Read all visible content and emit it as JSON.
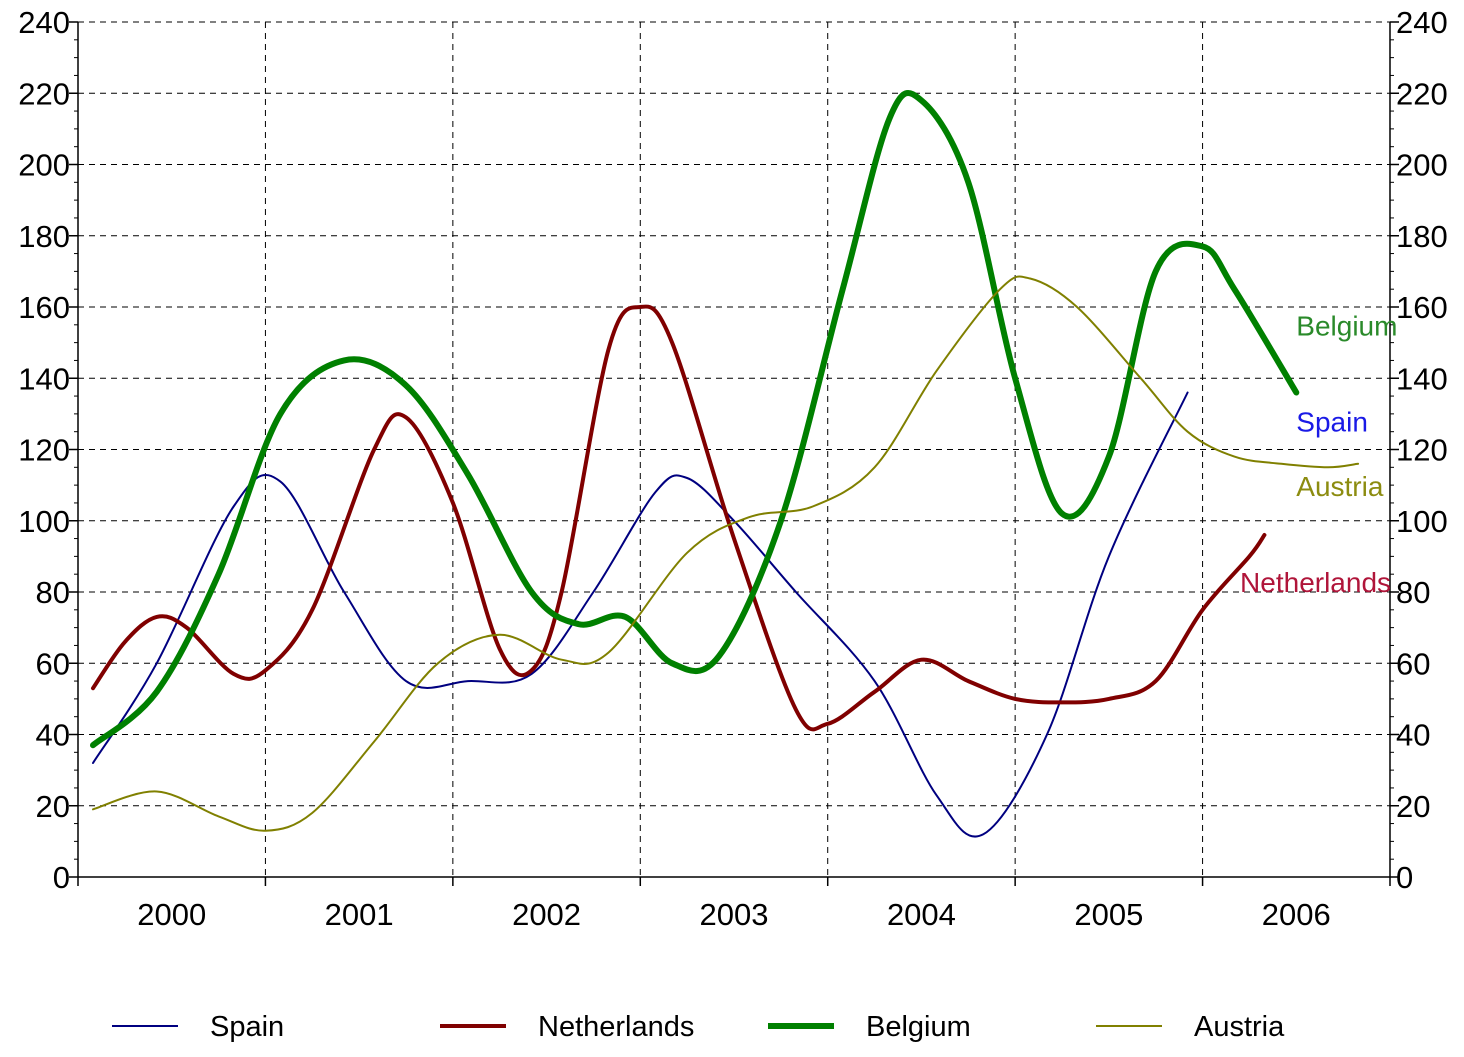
{
  "chart_data": {
    "type": "line",
    "title": "",
    "xlabel": "",
    "ylabel": "",
    "ylim": [
      0,
      240
    ],
    "y_ticks": [
      0,
      20,
      40,
      60,
      80,
      100,
      120,
      140,
      160,
      180,
      200,
      220,
      240
    ],
    "y_axes": "left-and-right",
    "xlim": [
      2000,
      2007
    ],
    "x_tick_labels": [
      "2000",
      "2001",
      "2002",
      "2003",
      "2004",
      "2005",
      "2006"
    ],
    "grid": "dashed",
    "legend_position": "bottom",
    "series": [
      {
        "name": "Spain",
        "color": "#000080",
        "line_width": "thin",
        "points": [
          [
            2000.08,
            32
          ],
          [
            2000.42,
            60
          ],
          [
            2000.83,
            104
          ],
          [
            2001.08,
            111
          ],
          [
            2001.42,
            80
          ],
          [
            2001.75,
            55
          ],
          [
            2002.08,
            55
          ],
          [
            2002.42,
            57
          ],
          [
            2002.75,
            80
          ],
          [
            2003.08,
            108
          ],
          [
            2003.25,
            112
          ],
          [
            2003.5,
            100
          ],
          [
            2003.83,
            80
          ],
          [
            2004.25,
            55
          ],
          [
            2004.58,
            23
          ],
          [
            2004.83,
            12
          ],
          [
            2005.17,
            40
          ],
          [
            2005.5,
            90
          ],
          [
            2005.92,
            136
          ]
        ]
      },
      {
        "name": "Netherlands",
        "color": "#800000",
        "line_width": "medium",
        "points": [
          [
            2000.08,
            53
          ],
          [
            2000.25,
            66
          ],
          [
            2000.42,
            73
          ],
          [
            2000.58,
            70
          ],
          [
            2000.83,
            57
          ],
          [
            2001.0,
            58
          ],
          [
            2001.25,
            75
          ],
          [
            2001.58,
            120
          ],
          [
            2001.75,
            129
          ],
          [
            2002.0,
            105
          ],
          [
            2002.25,
            64
          ],
          [
            2002.42,
            58
          ],
          [
            2002.58,
            80
          ],
          [
            2002.83,
            148
          ],
          [
            2003.0,
            160
          ],
          [
            2003.17,
            150
          ],
          [
            2003.5,
            95
          ],
          [
            2003.83,
            47
          ],
          [
            2004.0,
            43
          ],
          [
            2004.25,
            52
          ],
          [
            2004.5,
            61
          ],
          [
            2004.75,
            55
          ],
          [
            2005.0,
            50
          ],
          [
            2005.25,
            49
          ],
          [
            2005.5,
            50
          ],
          [
            2005.75,
            55
          ],
          [
            2006.0,
            75
          ],
          [
            2006.25,
            90
          ],
          [
            2006.33,
            96
          ]
        ]
      },
      {
        "name": "Belgium",
        "color": "#008000",
        "line_width": "thick",
        "points": [
          [
            2000.08,
            37
          ],
          [
            2000.42,
            52
          ],
          [
            2000.75,
            85
          ],
          [
            2001.08,
            130
          ],
          [
            2001.42,
            145
          ],
          [
            2001.75,
            138
          ],
          [
            2002.08,
            113
          ],
          [
            2002.42,
            80
          ],
          [
            2002.67,
            71
          ],
          [
            2002.92,
            73
          ],
          [
            2003.17,
            60
          ],
          [
            2003.42,
            62
          ],
          [
            2003.75,
            100
          ],
          [
            2004.08,
            165
          ],
          [
            2004.33,
            213
          ],
          [
            2004.5,
            218
          ],
          [
            2004.75,
            195
          ],
          [
            2005.0,
            140
          ],
          [
            2005.25,
            102
          ],
          [
            2005.5,
            118
          ],
          [
            2005.75,
            170
          ],
          [
            2006.0,
            177
          ],
          [
            2006.17,
            165
          ],
          [
            2006.5,
            136
          ]
        ]
      },
      {
        "name": "Austria",
        "color": "#808000",
        "line_width": "thin",
        "points": [
          [
            2000.08,
            19
          ],
          [
            2000.42,
            24
          ],
          [
            2000.75,
            17
          ],
          [
            2001.0,
            13
          ],
          [
            2001.25,
            18
          ],
          [
            2001.58,
            38
          ],
          [
            2001.92,
            60
          ],
          [
            2002.25,
            68
          ],
          [
            2002.58,
            61
          ],
          [
            2002.83,
            63
          ],
          [
            2003.25,
            91
          ],
          [
            2003.58,
            101
          ],
          [
            2003.92,
            104
          ],
          [
            2004.25,
            115
          ],
          [
            2004.58,
            142
          ],
          [
            2004.92,
            165
          ],
          [
            2005.08,
            168
          ],
          [
            2005.33,
            160
          ],
          [
            2005.67,
            140
          ],
          [
            2005.92,
            125
          ],
          [
            2006.17,
            118
          ],
          [
            2006.42,
            116
          ],
          [
            2006.67,
            115
          ],
          [
            2006.83,
            116
          ]
        ]
      }
    ],
    "inline_labels": [
      {
        "text": "Belgium",
        "series": "Belgium",
        "x": 2006.5,
        "y": 152
      },
      {
        "text": "Spain",
        "series": "Spain",
        "x": 2006.5,
        "y": 125
      },
      {
        "text": "Austria",
        "series": "Austria",
        "x": 2006.5,
        "y": 107
      },
      {
        "text": "Netherlands",
        "series": "Netherlands",
        "x": 2006.2,
        "y": 80
      }
    ]
  }
}
